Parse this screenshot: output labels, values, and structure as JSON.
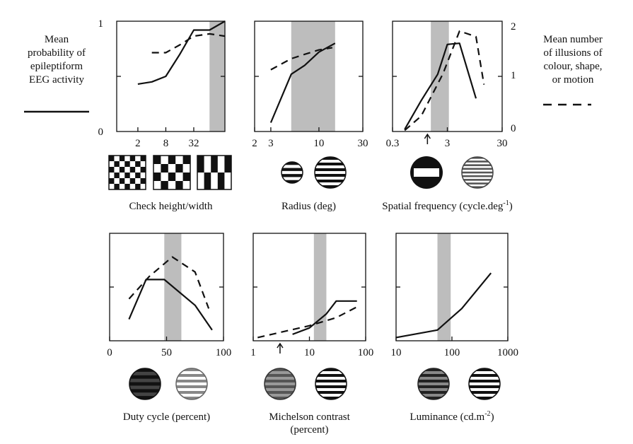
{
  "legend": {
    "solid": {
      "text": "Mean probability of epileptiform EEG activity",
      "lines": [
        "Mean",
        "probability of",
        "epileptiform",
        "EEG activity"
      ]
    },
    "dashed": {
      "text": "Mean number of illusions of colour, shape, or motion",
      "lines": [
        "Mean number",
        "of illusions of",
        "colour, shape,",
        "or motion"
      ]
    }
  },
  "left_axis_ticks": [
    "0",
    "1"
  ],
  "right_axis_ticks": [
    "0",
    "1",
    "2"
  ],
  "colors": {
    "line": "#111111",
    "band": "#bdbdbd"
  },
  "chart_data": [
    {
      "type": "line",
      "xlabel": "Check height/width",
      "x_scale": "log",
      "xlim": [
        0.7,
        150
      ],
      "ylim": [
        0,
        1
      ],
      "xtick_labels": [
        "2",
        "8",
        "32"
      ],
      "shaded_band_x": [
        70,
        150
      ],
      "series": [
        {
          "style": "solid",
          "axis": "left",
          "x": [
            2,
            4,
            8,
            16,
            32,
            70,
            150
          ],
          "y": [
            0.43,
            0.45,
            0.5,
            0.7,
            0.92,
            0.92,
            1.0
          ]
        },
        {
          "style": "dashed",
          "axis": "right",
          "x": [
            4,
            8,
            16,
            32,
            70,
            150
          ],
          "y": [
            1.43,
            1.43,
            1.57,
            1.73,
            1.77,
            1.73
          ]
        }
      ],
      "stimulus_icons": [
        "checkerboard-square-icon",
        "checkerboard-oblong-icon",
        "checkerboard-tall-icon"
      ]
    },
    {
      "type": "line",
      "xlabel": "Radius (deg)",
      "x_scale": "log",
      "xlim": [
        2,
        30
      ],
      "ylim": [
        0,
        1
      ],
      "xtick_labels": [
        "2",
        "3",
        "10",
        "30"
      ],
      "shaded_band_x": [
        5,
        15
      ],
      "series": [
        {
          "style": "solid",
          "axis": "left",
          "x": [
            3,
            5,
            7,
            10,
            15
          ],
          "y": [
            0.08,
            0.52,
            0.6,
            0.72,
            0.8
          ]
        },
        {
          "style": "dashed",
          "axis": "right",
          "x": [
            3,
            5,
            7,
            10,
            14
          ],
          "y": [
            1.12,
            1.32,
            1.4,
            1.48,
            1.52
          ]
        }
      ],
      "stimulus_icons": [
        "small-grating-disc-icon",
        "large-grating-disc-icon"
      ]
    },
    {
      "type": "line",
      "xlabel": "Spatial frequency (cycle.deg",
      "xlabel_sup": "-1",
      "xlabel_close": ")",
      "x_scale": "log",
      "xlim": [
        0.3,
        30
      ],
      "ylim": [
        0,
        1
      ],
      "xtick_labels": [
        "0.3",
        "3",
        "30"
      ],
      "shaded_band_x": [
        1.5,
        3.2
      ],
      "arrow_at_x": 1.3,
      "series": [
        {
          "style": "solid",
          "axis": "left",
          "x": [
            0.5,
            1,
            2,
            3,
            5,
            10
          ],
          "y": [
            0.02,
            0.28,
            0.52,
            0.79,
            0.8,
            0.3
          ]
        },
        {
          "style": "dashed",
          "axis": "right",
          "x": [
            0.5,
            1,
            2.5,
            5,
            10,
            14
          ],
          "y": [
            0.02,
            0.28,
            1.05,
            1.82,
            1.72,
            0.85
          ]
        }
      ],
      "stimulus_icons": [
        "single-bar-disc-icon",
        "fine-grating-disc-icon"
      ]
    },
    {
      "type": "line",
      "xlabel": "Duty cycle (percent)",
      "x_scale": "linear",
      "xlim": [
        0,
        100
      ],
      "ylim": [
        0,
        1
      ],
      "xtick_labels": [
        "0",
        "50",
        "100"
      ],
      "shaded_band_x": [
        48,
        63
      ],
      "series": [
        {
          "style": "solid",
          "axis": "left",
          "x": [
            17,
            32,
            48,
            75,
            90
          ],
          "y": [
            0.2,
            0.57,
            0.57,
            0.33,
            0.1
          ]
        },
        {
          "style": "dashed",
          "axis": "right",
          "x": [
            17,
            35,
            55,
            75,
            87
          ],
          "y": [
            0.78,
            1.2,
            1.56,
            1.28,
            0.6
          ]
        }
      ],
      "stimulus_icons": [
        "dark-grating-disc-icon",
        "light-grating-disc-icon"
      ]
    },
    {
      "type": "line",
      "xlabel": "Michelson contrast",
      "xlabel_line2": "(percent)",
      "x_scale": "log",
      "xlim": [
        1,
        100
      ],
      "ylim": [
        0,
        1
      ],
      "xtick_labels": [
        "1",
        "10",
        "100"
      ],
      "shaded_band_x": [
        12,
        20
      ],
      "arrow_at_x": 3,
      "series": [
        {
          "style": "solid",
          "axis": "left",
          "x": [
            5,
            10,
            20,
            30,
            70
          ],
          "y": [
            0.06,
            0.12,
            0.25,
            0.37,
            0.37
          ]
        },
        {
          "style": "dashed",
          "axis": "right",
          "x": [
            1.2,
            10,
            30,
            70
          ],
          "y": [
            0.06,
            0.28,
            0.43,
            0.63
          ]
        }
      ],
      "stimulus_icons": [
        "low-contrast-disc-icon",
        "high-contrast-disc-icon"
      ]
    },
    {
      "type": "line",
      "xlabel": "Luminance (cd.m",
      "xlabel_sup": "-2",
      "xlabel_close": ")",
      "x_scale": "log",
      "xlim": [
        10,
        1000
      ],
      "ylim": [
        0,
        1
      ],
      "xtick_labels": [
        "10",
        "100",
        "1000"
      ],
      "shaded_band_x": [
        55,
        95
      ],
      "series": [
        {
          "style": "solid",
          "axis": "left",
          "x": [
            10,
            55,
            150,
            500
          ],
          "y": [
            0.03,
            0.1,
            0.3,
            0.63
          ]
        }
      ],
      "stimulus_icons": [
        "dim-grating-disc-icon",
        "bright-grating-disc-icon"
      ]
    }
  ]
}
